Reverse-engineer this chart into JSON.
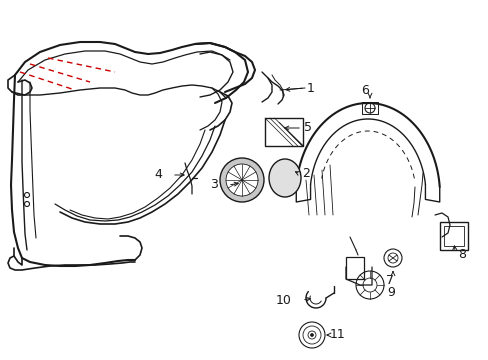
{
  "bg_color": "#ffffff",
  "line_color": "#1a1a1a",
  "red_dash_color": "#cc0000",
  "label_color": "#000000",
  "fig_width": 4.89,
  "fig_height": 3.6,
  "dpi": 100
}
